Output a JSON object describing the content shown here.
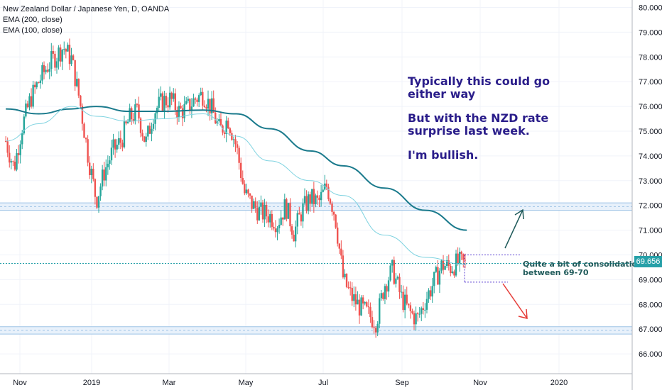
{
  "legend": {
    "title": "New Zealand Dollar / Japanese Yen, D, OANDA",
    "ema200": "EMA (200, close)",
    "ema100": "EMA (100, close)"
  },
  "note": {
    "line1": "Typically this could go\neither way",
    "line2": "But with the NZD rate\nsurprise last week.",
    "line3": "I'm bullish."
  },
  "consolidation": {
    "line1": "Quite a bit of consolidation",
    "line2": "between 69-70"
  },
  "last_price": "69.656",
  "colors": {
    "up": "#26a69a",
    "down": "#ef5350",
    "ema200": "#1a7a8c",
    "ema100": "#7fd3e0",
    "zone": "#9ec3e6",
    "arrow_up": "#1f5a5a",
    "arrow_down": "#e53935",
    "box": "#5b3fd1"
  },
  "chart_data": {
    "type": "line",
    "ylim": [
      65.2,
      80.3
    ],
    "y_ticks": [
      "66.000",
      "67.000",
      "68.000",
      "69.000",
      "70.000",
      "71.000",
      "72.000",
      "73.000",
      "74.000",
      "75.000",
      "76.000",
      "77.000",
      "78.000",
      "79.000",
      "80.000"
    ],
    "x_ticks": [
      "Nov",
      "2019",
      "Mar",
      "May",
      "Jul",
      "Sep",
      "Nov",
      "2020"
    ],
    "price": [
      [
        "Oct 20",
        74.6
      ],
      [
        "Oct 27",
        73.5
      ],
      [
        "Nov 3",
        75.2
      ],
      [
        "Nov 10",
        76.3
      ],
      [
        "Nov 17",
        77.0
      ],
      [
        "Nov 24",
        77.6
      ],
      [
        "Dec 1",
        78.0
      ],
      [
        "Dec 8",
        78.4
      ],
      [
        "Dec 15",
        77.9
      ],
      [
        "Dec 22",
        76.2
      ],
      [
        "Dec 29",
        74.0
      ],
      [
        "Jan 5",
        72.2
      ],
      [
        "Jan 12",
        73.4
      ],
      [
        "Jan 19",
        74.2
      ],
      [
        "Jan 26",
        74.6
      ],
      [
        "Feb 2",
        75.5
      ],
      [
        "Feb 9",
        75.8
      ],
      [
        "Feb 16",
        74.5
      ],
      [
        "Feb 23",
        75.8
      ],
      [
        "Mar 2",
        76.2
      ],
      [
        "Mar 9",
        76.3
      ],
      [
        "Mar 16",
        75.8
      ],
      [
        "Mar 23",
        75.9
      ],
      [
        "Mar 30",
        76.3
      ],
      [
        "Apr 6",
        76.5
      ],
      [
        "Apr 13",
        75.9
      ],
      [
        "Apr 20",
        75.0
      ],
      [
        "Apr 27",
        75.5
      ],
      [
        "May 4",
        74.4
      ],
      [
        "May 11",
        72.5
      ],
      [
        "May 18",
        72.0
      ],
      [
        "May 25",
        71.7
      ],
      [
        "Jun 1",
        71.6
      ],
      [
        "Jun 8",
        71.3
      ],
      [
        "Jun 15",
        72.0
      ],
      [
        "Jun 22",
        70.9
      ],
      [
        "Jun 29",
        71.8
      ],
      [
        "Jul 6",
        72.3
      ],
      [
        "Jul 13",
        72.1
      ],
      [
        "Jul 20",
        72.8
      ],
      [
        "Jul 27",
        71.6
      ],
      [
        "Aug 3",
        69.0
      ],
      [
        "Aug 10",
        68.3
      ],
      [
        "Aug 17",
        67.9
      ],
      [
        "Aug 24",
        67.6
      ],
      [
        "Aug 31",
        67.3
      ],
      [
        "Sep 7",
        68.8
      ],
      [
        "Sep 14",
        69.4
      ],
      [
        "Sep 21",
        68.3
      ],
      [
        "Sep 28",
        67.7
      ],
      [
        "Oct 5",
        67.4
      ],
      [
        "Oct 12",
        68.2
      ],
      [
        "Oct 19",
        68.9
      ],
      [
        "Oct 26",
        69.6
      ],
      [
        "Nov 2",
        69.5
      ],
      [
        "Nov 9",
        69.7
      ],
      [
        "Nov 16",
        69.6
      ]
    ],
    "ema200": [
      [
        "Oct 20",
        75.9
      ],
      [
        "Nov 17",
        75.7
      ],
      [
        "Dec 15",
        75.9
      ],
      [
        "Jan 5",
        76.0
      ],
      [
        "Feb 2",
        75.8
      ],
      [
        "Mar 2",
        75.8
      ],
      [
        "Apr 6",
        75.85
      ],
      [
        "May 4",
        75.7
      ],
      [
        "Jun 1",
        75.1
      ],
      [
        "Jul 6",
        74.2
      ],
      [
        "Aug 3",
        73.6
      ],
      [
        "Sep 7",
        72.7
      ],
      [
        "Oct 12",
        71.8
      ],
      [
        "Nov 16",
        71.0
      ]
    ],
    "ema100": [
      [
        "Oct 20",
        74.6
      ],
      [
        "Nov 17",
        75.3
      ],
      [
        "Dec 15",
        76.0
      ],
      [
        "Jan 5",
        75.6
      ],
      [
        "Feb 2",
        75.4
      ],
      [
        "Mar 2",
        75.5
      ],
      [
        "Apr 6",
        75.7
      ],
      [
        "May 4",
        74.8
      ],
      [
        "Jun 1",
        73.8
      ],
      [
        "Jul 6",
        73.0
      ],
      [
        "Aug 3",
        72.4
      ],
      [
        "Sep 7",
        70.8
      ],
      [
        "Oct 12",
        69.9
      ],
      [
        "Nov 16",
        69.6
      ]
    ],
    "zones": [
      {
        "low": 71.8,
        "high": 72.1
      },
      {
        "low": 66.8,
        "high": 67.1
      }
    ],
    "box": {
      "low": 68.9,
      "high": 70.0
    },
    "last_price": 69.656
  }
}
